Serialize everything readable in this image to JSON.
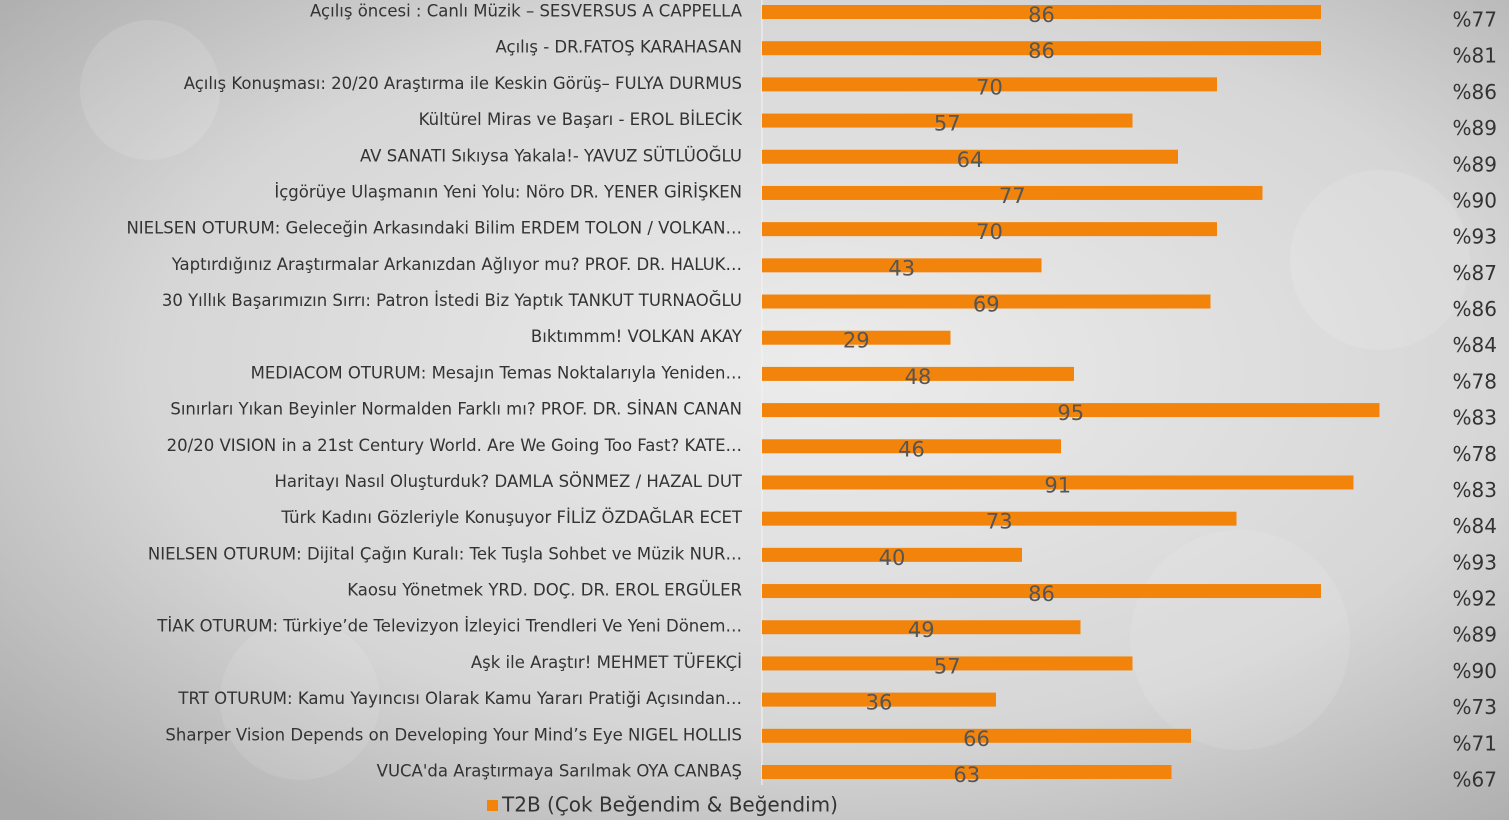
{
  "chart_data": {
    "type": "bar",
    "orientation": "horizontal",
    "categories": [
      "Açılış öncesi : Canlı Müzik – SESVERSUS A CAPPELLA",
      "Açılış - DR.FATOŞ KARAHASAN",
      "Açılış Konuşması: 20/20 Araştırma ile Keskin Görüş– FULYA DURMUS",
      "Kültürel Miras ve Başarı - EROL BİLECİK",
      "AV SANATI Sıkıysa Yakala!- YAVUZ SÜTLÜOĞLU",
      "İçgörüye Ulaşmanın Yeni Yolu: Nöro DR. YENER GİRİŞKEN",
      "NIELSEN OTURUM: Geleceğin Arkasındaki Bilim ERDEM TOLON / VOLKAN…",
      "Yaptırdığınız Araştırmalar Arkanızdan Ağlıyor mu? PROF. DR. HALUK…",
      "30 Yıllık Başarımızın Sırrı: Patron İstedi Biz Yaptık TANKUT TURNAOĞLU",
      "Bıktımmm! VOLKAN AKAY",
      "MEDIACOM OTURUM: Mesajın Temas Noktalarıyla Yeniden…",
      "Sınırları Yıkan Beyinler Normalden Farklı mı? PROF. DR. SİNAN CANAN",
      "20/20 VISION in a 21st Century World. Are We Going Too Fast? KATE…",
      "Haritayı Nasıl Oluşturduk? DAMLA SÖNMEZ / HAZAL DUT",
      "Türk Kadını Gözleriyle Konuşuyor FİLİZ ÖZDAĞLAR ECET",
      "NIELSEN OTURUM: Dijital Çağın Kuralı: Tek Tuşla Sohbet ve Müzik NUR…",
      "Kaosu Yönetmek YRD. DOÇ. DR. EROL ERGÜLER",
      "TİAK OTURUM: Türkiye’de Televizyon İzleyici Trendleri Ve Yeni Dönem…",
      "Aşk ile Araştır! MEHMET TÜFEKÇİ",
      "TRT OTURUM: Kamu Yayıncısı Olarak Kamu Yararı Pratiği Açısından…",
      "Sharper Vision Depends on Developing Your Mind’s Eye NIGEL HOLLIS",
      "VUCA'da Araştırmaya Sarılmak OYA CANBAŞ"
    ],
    "series": [
      {
        "name": "T2B (Çok Beğendim & Beğendim)",
        "color": "#f2840c",
        "values": [
          86,
          86,
          70,
          57,
          64,
          77,
          70,
          43,
          69,
          29,
          48,
          95,
          46,
          91,
          73,
          40,
          86,
          49,
          57,
          36,
          66,
          63
        ]
      }
    ],
    "side_labels": [
      "%77",
      "%81",
      "%86",
      "%89",
      "%89",
      "%90",
      "%93",
      "%87",
      "%86",
      "%84",
      "%78",
      "%83",
      "%78",
      "%83",
      "%84",
      "%93",
      "%92",
      "%89",
      "%90",
      "%73",
      "%71",
      "%67"
    ],
    "xlim": [
      0,
      100
    ],
    "legend": "bottom"
  }
}
